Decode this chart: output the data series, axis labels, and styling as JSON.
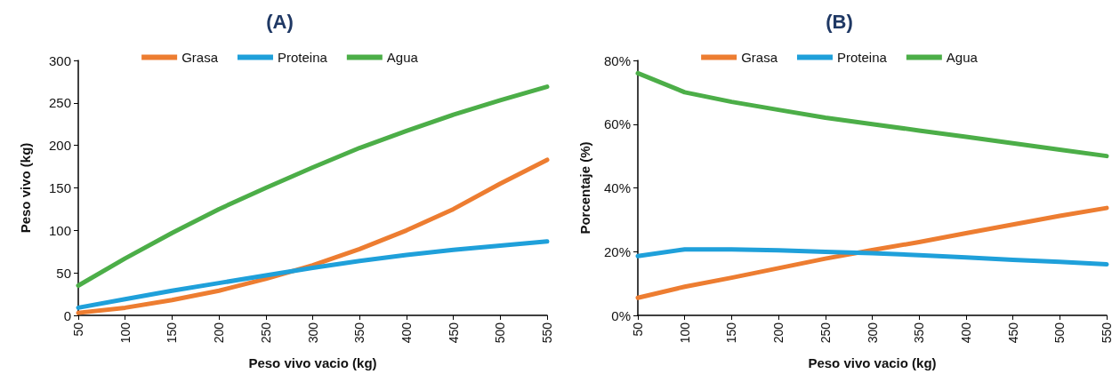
{
  "chart_data": [
    {
      "type": "line",
      "title": "(A)",
      "xlabel": "Peso vivo vacio (kg)",
      "ylabel": "Peso vivo (kg)",
      "categories": [
        "50",
        "100",
        "150",
        "200",
        "250",
        "300",
        "350",
        "400",
        "450",
        "500",
        "550"
      ],
      "ylim": [
        0,
        300
      ],
      "yticks": [
        0,
        50,
        100,
        150,
        200,
        250,
        300
      ],
      "grid": false,
      "legend": "top",
      "marker": "none",
      "line_style": "solid",
      "series": [
        {
          "name": "Grasa",
          "color": "#ed7d31",
          "values": [
            3,
            9,
            18,
            29,
            43,
            59,
            78,
            100,
            125,
            155,
            183
          ]
        },
        {
          "name": "Proteina",
          "color": "#1fa0da",
          "values": [
            9,
            19,
            29,
            38,
            47,
            56,
            64,
            71,
            77,
            82,
            87
          ]
        },
        {
          "name": "Agua",
          "color": "#4cae48",
          "values": [
            35,
            67,
            97,
            125,
            150,
            174,
            197,
            217,
            236,
            253,
            269
          ]
        }
      ]
    },
    {
      "type": "line",
      "title": "(B)",
      "xlabel": "Peso vivo vacio (kg)",
      "ylabel": "Porcentaje (%)",
      "categories": [
        "50",
        "100",
        "150",
        "200",
        "250",
        "300",
        "350",
        "400",
        "450",
        "500",
        "550"
      ],
      "ylim": [
        0,
        80
      ],
      "yticks": [
        {
          "value": 0,
          "label": "0%"
        },
        {
          "value": 20,
          "label": "20%"
        },
        {
          "value": 40,
          "label": "40%"
        },
        {
          "value": 60,
          "label": "60%"
        },
        {
          "value": 80,
          "label": "80%"
        }
      ],
      "grid": false,
      "legend": "top",
      "marker": "none",
      "line_style": "solid",
      "series": [
        {
          "name": "Grasa",
          "color": "#ed7d31",
          "values": [
            5.5,
            9,
            11.8,
            14.8,
            17.8,
            20.5,
            23,
            25.8,
            28.5,
            31.2,
            33.7
          ]
        },
        {
          "name": "Proteina",
          "color": "#1fa0da",
          "values": [
            18.6,
            20.7,
            20.7,
            20.4,
            19.9,
            19.5,
            18.9,
            18.2,
            17.4,
            16.8,
            16
          ]
        },
        {
          "name": "Agua",
          "color": "#4cae48",
          "values": [
            76,
            70,
            67,
            64.5,
            62,
            60,
            58,
            56,
            54,
            52,
            50
          ]
        }
      ]
    }
  ]
}
